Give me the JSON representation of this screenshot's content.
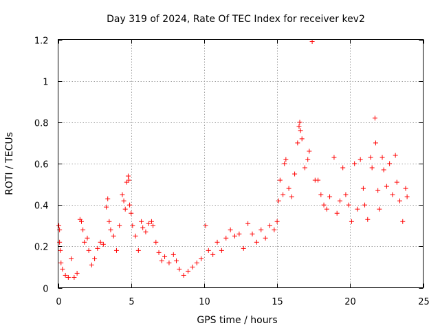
{
  "chart_data": {
    "type": "scatter",
    "title": "Day 319 of 2024, Rate Of TEC Index for receiver kev2",
    "xlabel": "GPS time / hours",
    "ylabel": "ROTI / TECUs",
    "xlim": [
      0,
      25
    ],
    "ylim": [
      0,
      1.2
    ],
    "xticks": [
      0,
      5,
      10,
      15,
      20,
      25
    ],
    "xtick_labels": [
      "0",
      "5",
      "10",
      "15",
      "20",
      "25"
    ],
    "yticks": [
      0,
      0.2,
      0.4,
      0.6,
      0.8,
      1.0,
      1.2
    ],
    "ytick_labels": [
      "0",
      "0.2",
      "0.4",
      "0.6",
      "0.8",
      "1",
      "1.2"
    ],
    "grid": true,
    "marker": "plus",
    "marker_color": "#ff0000",
    "series": [
      {
        "name": "ROTI",
        "points": [
          [
            0.05,
            0.3
          ],
          [
            0.1,
            0.28
          ],
          [
            0.1,
            0.22
          ],
          [
            0.15,
            0.18
          ],
          [
            0.2,
            0.12
          ],
          [
            0.3,
            0.09
          ],
          [
            0.5,
            0.06
          ],
          [
            0.7,
            0.05
          ],
          [
            0.9,
            0.14
          ],
          [
            1.1,
            0.05
          ],
          [
            1.3,
            0.07
          ],
          [
            1.5,
            0.33
          ],
          [
            1.6,
            0.32
          ],
          [
            1.7,
            0.28
          ],
          [
            1.8,
            0.22
          ],
          [
            2.0,
            0.24
          ],
          [
            2.1,
            0.18
          ],
          [
            2.3,
            0.11
          ],
          [
            2.5,
            0.14
          ],
          [
            2.7,
            0.19
          ],
          [
            2.9,
            0.22
          ],
          [
            3.1,
            0.21
          ],
          [
            3.3,
            0.39
          ],
          [
            3.4,
            0.43
          ],
          [
            3.5,
            0.32
          ],
          [
            3.6,
            0.28
          ],
          [
            3.8,
            0.25
          ],
          [
            4.0,
            0.18
          ],
          [
            4.2,
            0.3
          ],
          [
            4.4,
            0.45
          ],
          [
            4.5,
            0.42
          ],
          [
            4.6,
            0.38
          ],
          [
            4.7,
            0.51
          ],
          [
            4.8,
            0.54
          ],
          [
            4.85,
            0.52
          ],
          [
            4.9,
            0.4
          ],
          [
            5.0,
            0.36
          ],
          [
            5.1,
            0.3
          ],
          [
            5.3,
            0.25
          ],
          [
            5.5,
            0.18
          ],
          [
            5.7,
            0.32
          ],
          [
            5.8,
            0.29
          ],
          [
            6.0,
            0.27
          ],
          [
            6.2,
            0.31
          ],
          [
            6.4,
            0.32
          ],
          [
            6.5,
            0.3
          ],
          [
            6.7,
            0.22
          ],
          [
            6.9,
            0.17
          ],
          [
            7.1,
            0.13
          ],
          [
            7.3,
            0.15
          ],
          [
            7.6,
            0.12
          ],
          [
            7.9,
            0.16
          ],
          [
            8.1,
            0.13
          ],
          [
            8.3,
            0.09
          ],
          [
            8.6,
            0.06
          ],
          [
            8.9,
            0.08
          ],
          [
            9.2,
            0.1
          ],
          [
            9.5,
            0.12
          ],
          [
            9.8,
            0.14
          ],
          [
            10.1,
            0.3
          ],
          [
            10.3,
            0.18
          ],
          [
            10.6,
            0.16
          ],
          [
            10.9,
            0.22
          ],
          [
            11.2,
            0.18
          ],
          [
            11.5,
            0.24
          ],
          [
            11.8,
            0.28
          ],
          [
            12.1,
            0.25
          ],
          [
            12.4,
            0.26
          ],
          [
            12.7,
            0.19
          ],
          [
            13.0,
            0.31
          ],
          [
            13.3,
            0.26
          ],
          [
            13.6,
            0.22
          ],
          [
            13.9,
            0.28
          ],
          [
            14.2,
            0.24
          ],
          [
            14.5,
            0.3
          ],
          [
            14.8,
            0.28
          ],
          [
            15.0,
            0.32
          ],
          [
            15.1,
            0.42
          ],
          [
            15.2,
            0.52
          ],
          [
            15.4,
            0.45
          ],
          [
            15.5,
            0.6
          ],
          [
            15.6,
            0.62
          ],
          [
            15.8,
            0.48
          ],
          [
            16.0,
            0.44
          ],
          [
            16.2,
            0.55
          ],
          [
            16.4,
            0.7
          ],
          [
            16.5,
            0.78
          ],
          [
            16.55,
            0.8
          ],
          [
            16.6,
            0.76
          ],
          [
            16.7,
            0.72
          ],
          [
            16.9,
            0.58
          ],
          [
            17.1,
            0.62
          ],
          [
            17.2,
            0.66
          ],
          [
            17.4,
            1.19
          ],
          [
            17.6,
            0.52
          ],
          [
            17.8,
            0.52
          ],
          [
            18.0,
            0.45
          ],
          [
            18.2,
            0.4
          ],
          [
            18.4,
            0.38
          ],
          [
            18.6,
            0.44
          ],
          [
            18.9,
            0.63
          ],
          [
            19.1,
            0.36
          ],
          [
            19.3,
            0.42
          ],
          [
            19.5,
            0.58
          ],
          [
            19.7,
            0.45
          ],
          [
            19.9,
            0.4
          ],
          [
            20.1,
            0.32
          ],
          [
            20.3,
            0.6
          ],
          [
            20.5,
            0.38
          ],
          [
            20.7,
            0.62
          ],
          [
            20.9,
            0.48
          ],
          [
            21.0,
            0.4
          ],
          [
            21.2,
            0.33
          ],
          [
            21.4,
            0.63
          ],
          [
            21.5,
            0.58
          ],
          [
            21.7,
            0.82
          ],
          [
            21.75,
            0.7
          ],
          [
            21.9,
            0.47
          ],
          [
            22.0,
            0.38
          ],
          [
            22.2,
            0.63
          ],
          [
            22.3,
            0.57
          ],
          [
            22.5,
            0.49
          ],
          [
            22.7,
            0.6
          ],
          [
            22.9,
            0.45
          ],
          [
            23.1,
            0.64
          ],
          [
            23.2,
            0.51
          ],
          [
            23.4,
            0.42
          ],
          [
            23.6,
            0.32
          ],
          [
            23.8,
            0.48
          ],
          [
            23.9,
            0.44
          ]
        ]
      }
    ]
  }
}
